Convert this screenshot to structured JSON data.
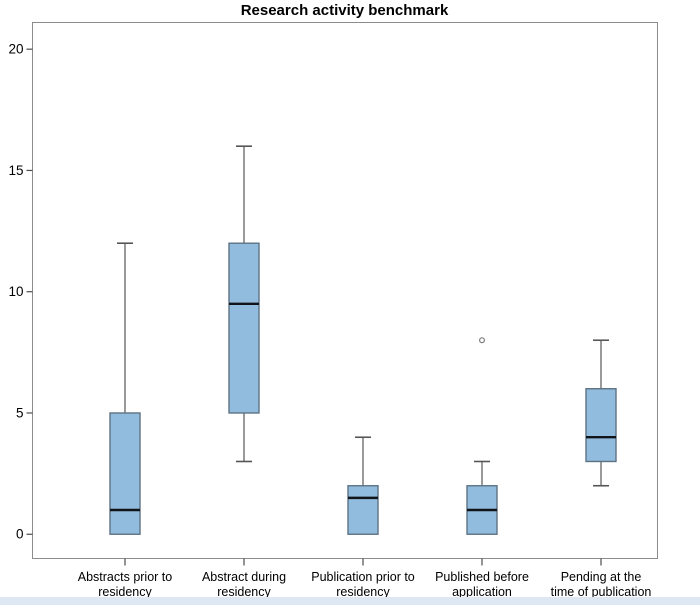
{
  "title": "Research activity benchmark",
  "chart_data": {
    "type": "box",
    "title": "Research activity benchmark",
    "xlabel": "",
    "ylabel": "",
    "ylim": [
      -1,
      21.1
    ],
    "yticks": [
      "0",
      "5",
      "10",
      "15",
      "20"
    ],
    "ytick_values": [
      0,
      5,
      10,
      15,
      20
    ],
    "grid": false,
    "legend": "none",
    "categories": [
      {
        "label": "Abstracts prior to residency",
        "label_lines": [
          "Abstracts prior to",
          "residency"
        ]
      },
      {
        "label": "Abstract during residency",
        "label_lines": [
          "Abstract during",
          "residency"
        ]
      },
      {
        "label": "Publication prior to residency",
        "label_lines": [
          "Publication prior to",
          "residency"
        ]
      },
      {
        "label": "Published before application",
        "label_lines": [
          "Published before",
          "application"
        ]
      },
      {
        "label": "Pending at the time of publication",
        "label_lines": [
          "Pending at the",
          "time of publication"
        ]
      }
    ],
    "series": [
      {
        "name": "Abstracts prior to residency",
        "min": 0,
        "q1": 0,
        "median": 1,
        "q3": 5,
        "max": 12,
        "outliers": []
      },
      {
        "name": "Abstract during residency",
        "min": 3,
        "q1": 5,
        "median": 9.5,
        "q3": 12,
        "max": 16,
        "outliers": []
      },
      {
        "name": "Publication prior to residency",
        "min": 0,
        "q1": 0,
        "median": 1.5,
        "q3": 2,
        "max": 4,
        "outliers": []
      },
      {
        "name": "Published before application",
        "min": 0,
        "q1": 0,
        "median": 1,
        "q3": 2,
        "max": 3,
        "outliers": [
          8
        ]
      },
      {
        "name": "Pending at the time of publication",
        "min": 2,
        "q1": 3,
        "median": 4,
        "q3": 6,
        "max": 8,
        "outliers": []
      }
    ],
    "colors": {
      "box_fill": "#92bcde",
      "box_border": "#5d7384",
      "median_line": "#111418",
      "whisker": "#6e6e6e",
      "outlier": "#7c7c7c",
      "frame": "#8c8c8c",
      "text": "#000000",
      "footer_strip": "#dde8f4"
    }
  }
}
